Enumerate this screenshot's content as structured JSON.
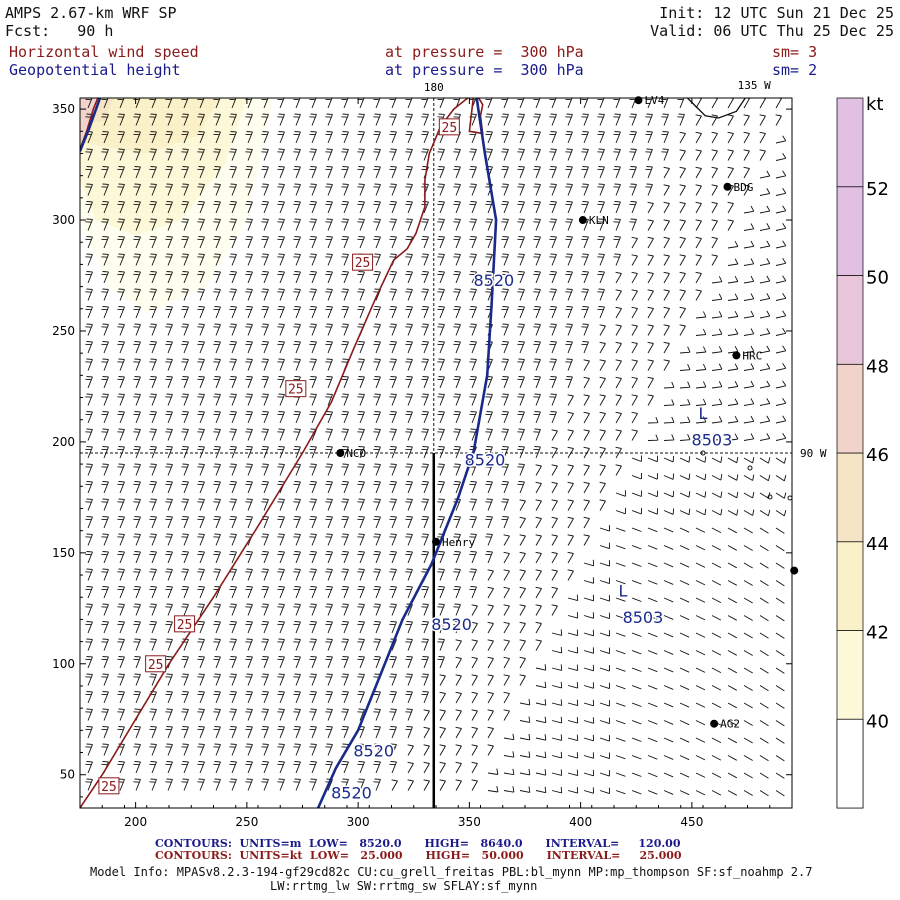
{
  "header": {
    "model": "AMPS 2.67-km WRF SP",
    "forecast": "Fcst:   90 h",
    "init": "Init: 12 UTC Sun 21 Dec 25",
    "valid": "Valid: 06 UTC Thu 25 Dec 25",
    "field1": {
      "name": "Horizontal wind speed",
      "level": "at pressure =  300 hPa",
      "smooth": "sm= 3"
    },
    "field2": {
      "name": "Geopotential height",
      "level": "at pressure =  300 hPa",
      "smooth": "sm= 2"
    }
  },
  "colors": {
    "wind_contour": "#8b1a1a",
    "height_contour": "#1a2a8b",
    "barb": "#111111"
  },
  "axes": {
    "x_ticks": [
      "200",
      "250",
      "300",
      "350",
      "400",
      "450"
    ],
    "y_ticks": [
      "50",
      "100",
      "150",
      "200",
      "250",
      "300",
      "350"
    ],
    "meridian_labels": [
      "180",
      "135 W",
      "90 W"
    ]
  },
  "colorbar": {
    "unit": "kt",
    "labels": [
      "40",
      "42",
      "44",
      "46",
      "48",
      "50",
      "52"
    ],
    "colors": [
      "#fffff0",
      "#fdf9d8",
      "#fbf1c8",
      "#f6e5c4",
      "#f1d3cc",
      "#e9c5d9",
      "#e2c0e4"
    ]
  },
  "chart_data": {
    "type": "contour_map",
    "x_range": [
      175,
      495
    ],
    "y_range": [
      35,
      355
    ],
    "height_contours": [
      {
        "value": 8520,
        "points": [
          [
            282,
            35
          ],
          [
            290,
            53
          ],
          [
            300,
            70
          ],
          [
            310,
            95
          ],
          [
            320,
            120
          ],
          [
            333,
            145
          ],
          [
            345,
            175
          ],
          [
            352,
            196
          ],
          [
            358,
            230
          ],
          [
            360,
            262
          ],
          [
            362,
            300
          ],
          [
            357,
            330
          ],
          [
            354,
            350
          ],
          [
            353,
            357
          ]
        ]
      },
      {
        "value": 8520,
        "points": [
          [
            175,
            331
          ],
          [
            179,
            341
          ],
          [
            184,
            355
          ]
        ]
      }
    ],
    "height_labels": [
      {
        "text": "8520",
        "x": 297,
        "y": 42
      },
      {
        "text": "8520",
        "x": 307,
        "y": 61
      },
      {
        "text": "8520",
        "x": 342,
        "y": 118
      },
      {
        "text": "8520",
        "x": 357,
        "y": 192
      },
      {
        "text": "8520",
        "x": 361,
        "y": 273
      },
      {
        "text": "8503",
        "x": 459,
        "y": 201
      },
      {
        "text": "8503",
        "x": 428,
        "y": 121
      }
    ],
    "lows": [
      {
        "text": "L",
        "x": 455,
        "y": 213
      },
      {
        "text": "L",
        "x": 419,
        "y": 133
      }
    ],
    "wind_contours": [
      {
        "value": 25,
        "points": [
          [
            175,
            35
          ],
          [
            185,
            50
          ],
          [
            200,
            75
          ],
          [
            215,
            100
          ],
          [
            235,
            130
          ],
          [
            255,
            162
          ],
          [
            275,
            195
          ],
          [
            288,
            218
          ],
          [
            298,
            242
          ],
          [
            308,
            265
          ],
          [
            316,
            282
          ],
          [
            322,
            287
          ],
          [
            326,
            294
          ],
          [
            330,
            306
          ],
          [
            330,
            318
          ],
          [
            332,
            330
          ],
          [
            337,
            342
          ],
          [
            343,
            350
          ],
          [
            348,
            354
          ],
          [
            352,
            357
          ],
          [
            350,
            340
          ],
          [
            356,
            339
          ],
          [
            355,
            347
          ],
          [
            356,
            352
          ],
          [
            353,
            357
          ]
        ]
      },
      {
        "value": 25,
        "points": [
          [
            175,
            332
          ],
          [
            178,
            340
          ],
          [
            181,
            350
          ],
          [
            183,
            355
          ]
        ]
      }
    ],
    "wind_labels": [
      {
        "text": "25",
        "x": 188,
        "y": 45
      },
      {
        "text": "25",
        "x": 209,
        "y": 100
      },
      {
        "text": "25",
        "x": 222,
        "y": 118
      },
      {
        "text": "25",
        "x": 272,
        "y": 224
      },
      {
        "text": "25",
        "x": 302,
        "y": 281
      },
      {
        "text": "25",
        "x": 341,
        "y": 342
      }
    ],
    "stations": [
      {
        "name": "NCO",
        "x": 292,
        "y": 195
      },
      {
        "name": "Henry",
        "x": 335,
        "y": 155
      },
      {
        "name": "KLN",
        "x": 401,
        "y": 300
      },
      {
        "name": "BDG",
        "x": 466,
        "y": 315
      },
      {
        "name": "HRC",
        "x": 470,
        "y": 239
      },
      {
        "name": "AG2",
        "x": 460,
        "y": 73
      },
      {
        "name": "LV4",
        "x": 426,
        "y": 354
      },
      {
        "name": "",
        "x": 496,
        "y": 142
      }
    ],
    "crosshair": {
      "x": 334,
      "y": 195
    }
  },
  "footer": {
    "line1": "CONTOURS:  UNITS=m  LOW=   8520.0      HIGH=   8640.0      INTERVAL=     120.00",
    "line2": "CONTOURS:  UNITS=kt  LOW=   25.000      HIGH=   50.000      INTERVAL=     25.000",
    "line3": "Model Info: MPASv8.2.3-194-gf29cd82c CU:cu_grell_freitas PBL:bl_mynn MP:mp_thompson SF:sf_noahmp 2.7",
    "line4": "LW:rrtmg_lw SW:rrtmg_sw SFLAY:sf_mynn"
  }
}
